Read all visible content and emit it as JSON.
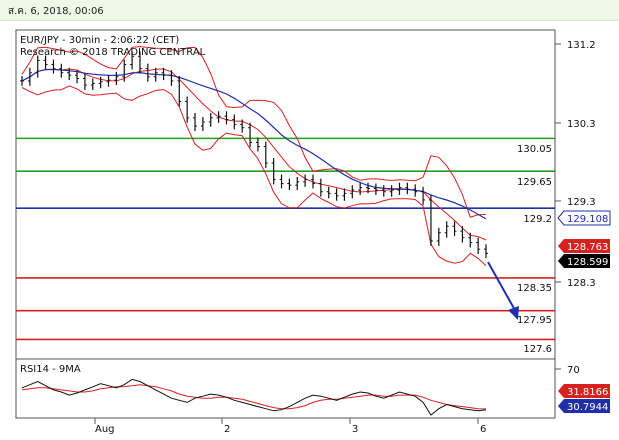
{
  "header": {
    "datetime": "ส.ค. 6, 2018, 00:06"
  },
  "chart_data": {
    "type": "line",
    "symbol_line": "EUR/JPY - 30min - 2:06:22 (CET)",
    "research_line": "Research © 2018 TRADING CENTRAL",
    "y_ticks": [
      "131.2",
      "130.3",
      "129.3",
      "128.3"
    ],
    "x_ticks": [
      "Aug",
      "2",
      "3",
      "6"
    ],
    "price_levels": [
      {
        "label": "130.05",
        "value": 130.05,
        "color": "#22a022"
      },
      {
        "label": "129.65",
        "value": 129.65,
        "color": "#22a022"
      },
      {
        "label": "129.2",
        "value": 129.2,
        "color": "#1f2fa8"
      },
      {
        "label": "128.35",
        "value": 128.35,
        "color": "#d82020"
      },
      {
        "label": "127.95",
        "value": 127.95,
        "color": "#d82020"
      },
      {
        "label": "127.6",
        "value": 127.6,
        "color": "#d82020"
      }
    ],
    "price_badges": [
      {
        "label": "129.108",
        "color": "#1f2fa8"
      },
      {
        "label": "128.763",
        "color": "#d82020"
      },
      {
        "label": "128.599",
        "color": "#000000"
      }
    ],
    "price_series": [
      130.75,
      130.85,
      131.0,
      130.95,
      130.9,
      130.85,
      130.82,
      130.78,
      130.7,
      130.72,
      130.74,
      130.76,
      130.8,
      130.95,
      131.05,
      130.9,
      130.8,
      130.85,
      130.82,
      130.75,
      130.5,
      130.3,
      130.2,
      130.25,
      130.3,
      130.32,
      130.28,
      130.22,
      130.18,
      130.0,
      129.95,
      129.75,
      129.55,
      129.5,
      129.48,
      129.52,
      129.55,
      129.5,
      129.4,
      129.38,
      129.35,
      129.38,
      129.42,
      129.45,
      129.44,
      129.42,
      129.4,
      129.42,
      129.45,
      129.43,
      129.4,
      129.3,
      128.8,
      128.9,
      128.98,
      128.92,
      128.84,
      128.78,
      128.7,
      128.65
    ],
    "indicator": {
      "name": "RSI14 - 9MA",
      "axis_tick": "70",
      "rsi_badge": "30.7944",
      "ma_badge": "31.8166",
      "rsi_series": [
        52,
        55,
        58,
        54,
        50,
        48,
        45,
        47,
        50,
        53,
        56,
        54,
        52,
        55,
        60,
        58,
        54,
        50,
        46,
        42,
        40,
        38,
        42,
        44,
        46,
        45,
        43,
        40,
        38,
        36,
        34,
        32,
        30,
        31,
        34,
        38,
        42,
        45,
        44,
        42,
        40,
        43,
        46,
        48,
        47,
        44,
        42,
        45,
        48,
        46,
        44,
        38,
        26,
        32,
        36,
        34,
        32,
        31,
        30,
        30.8
      ],
      "ma_series": [
        50,
        51,
        52,
        52,
        51,
        50,
        49,
        48,
        48,
        49,
        51,
        52,
        53,
        53,
        54,
        55,
        54,
        53,
        51,
        49,
        46,
        44,
        43,
        42,
        42,
        43,
        43,
        42,
        41,
        39,
        37,
        35,
        33,
        32,
        32,
        33,
        35,
        38,
        40,
        41,
        41,
        42,
        43,
        44,
        45,
        45,
        44,
        44,
        45,
        45,
        45,
        43,
        40,
        38,
        36,
        35,
        34,
        33,
        32,
        31.8
      ]
    }
  }
}
